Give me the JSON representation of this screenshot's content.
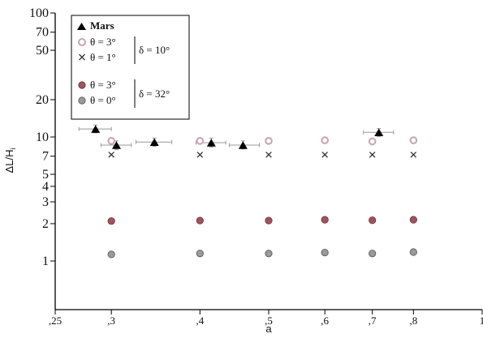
{
  "chart_data": {
    "type": "scatter",
    "xlabel": "a",
    "ylabel": "ΔL/H",
    "ylabel_sub": "i",
    "x_scale": "log",
    "y_scale": "log",
    "xlim": [
      0.25,
      1
    ],
    "ylim": [
      0.55,
      100
    ],
    "x_ticks": [
      {
        "value": 0.25,
        "label": ",25"
      },
      {
        "value": 0.3,
        "label": ",3"
      },
      {
        "value": 0.4,
        "label": ",4"
      },
      {
        "value": 0.5,
        "label": ",5"
      },
      {
        "value": 0.6,
        "label": ",6"
      },
      {
        "value": 0.7,
        "label": ",7"
      },
      {
        "value": 0.8,
        "label": ",8"
      },
      {
        "value": 1,
        "label": "1"
      }
    ],
    "y_ticks": [
      {
        "value": 1,
        "label": "1"
      },
      {
        "value": 2,
        "label": "2"
      },
      {
        "value": 3,
        "label": "3"
      },
      {
        "value": 4,
        "label": "4"
      },
      {
        "value": 5,
        "label": "5"
      },
      {
        "value": 7,
        "label": "7"
      },
      {
        "value": 10,
        "label": "10"
      },
      {
        "value": 20,
        "label": "20"
      },
      {
        "value": 50,
        "label": "50"
      },
      {
        "value": 70,
        "label": "70"
      },
      {
        "value": 100,
        "label": "100"
      }
    ],
    "series": [
      {
        "name": "Mars",
        "marker": "triangle",
        "color": "#000000",
        "points": [
          {
            "x": 0.285,
            "y": 11.6,
            "xerr": [
              0.27,
              0.3
            ],
            "yerr": [
              10.8,
              12.5
            ]
          },
          {
            "x": 0.305,
            "y": 8.6,
            "xerr": [
              0.29,
              0.32
            ],
            "yerr": [
              7.9,
              9.3
            ]
          },
          {
            "x": 0.345,
            "y": 9.1,
            "xerr": [
              0.325,
              0.365
            ],
            "yerr": [
              8.4,
              9.8
            ]
          },
          {
            "x": 0.415,
            "y": 9.0,
            "xerr": [
              0.395,
              0.435
            ],
            "yerr": [
              8.3,
              9.8
            ]
          },
          {
            "x": 0.46,
            "y": 8.6,
            "xerr": [
              0.44,
              0.485
            ],
            "yerr": [
              8.0,
              9.3
            ]
          },
          {
            "x": 0.715,
            "y": 10.9,
            "xerr": [
              0.68,
              0.75
            ],
            "yerr": [
              10.1,
              11.7
            ]
          }
        ]
      },
      {
        "name": "θ = 3°  (δ = 10°)",
        "marker": "open-circle",
        "color": "#c9a3ae",
        "points": [
          {
            "x": 0.3,
            "y": 9.3
          },
          {
            "x": 0.4,
            "y": 9.3
          },
          {
            "x": 0.5,
            "y": 9.3
          },
          {
            "x": 0.6,
            "y": 9.4
          },
          {
            "x": 0.7,
            "y": 9.2
          },
          {
            "x": 0.8,
            "y": 9.4
          }
        ]
      },
      {
        "name": "θ = 1°  (δ = 10°)",
        "marker": "cross",
        "color": "#333333",
        "points": [
          {
            "x": 0.3,
            "y": 7.2
          },
          {
            "x": 0.4,
            "y": 7.2
          },
          {
            "x": 0.5,
            "y": 7.2
          },
          {
            "x": 0.6,
            "y": 7.2
          },
          {
            "x": 0.7,
            "y": 7.2
          },
          {
            "x": 0.8,
            "y": 7.2
          }
        ]
      },
      {
        "name": "θ = 3°  (δ = 32°)",
        "marker": "filled-circle",
        "color": "#a0525e",
        "points": [
          {
            "x": 0.3,
            "y": 2.1
          },
          {
            "x": 0.4,
            "y": 2.12
          },
          {
            "x": 0.5,
            "y": 2.12
          },
          {
            "x": 0.6,
            "y": 2.15
          },
          {
            "x": 0.7,
            "y": 2.13
          },
          {
            "x": 0.8,
            "y": 2.15
          }
        ]
      },
      {
        "name": "θ = 0°  (δ = 32°)",
        "marker": "grey-circle",
        "color": "#9a9a9a",
        "points": [
          {
            "x": 0.3,
            "y": 1.13
          },
          {
            "x": 0.4,
            "y": 1.15
          },
          {
            "x": 0.5,
            "y": 1.15
          },
          {
            "x": 0.6,
            "y": 1.17
          },
          {
            "x": 0.7,
            "y": 1.15
          },
          {
            "x": 0.8,
            "y": 1.18
          }
        ]
      }
    ],
    "legend": {
      "placement": "top-left",
      "mars_label": "Mars",
      "group1": {
        "line1": "θ = 3°",
        "line2": "θ = 1°",
        "delta": "δ = 10°"
      },
      "group2": {
        "line1": "θ = 3°",
        "line2": "θ = 0°",
        "delta": "δ = 32°"
      }
    },
    "grid": false
  }
}
